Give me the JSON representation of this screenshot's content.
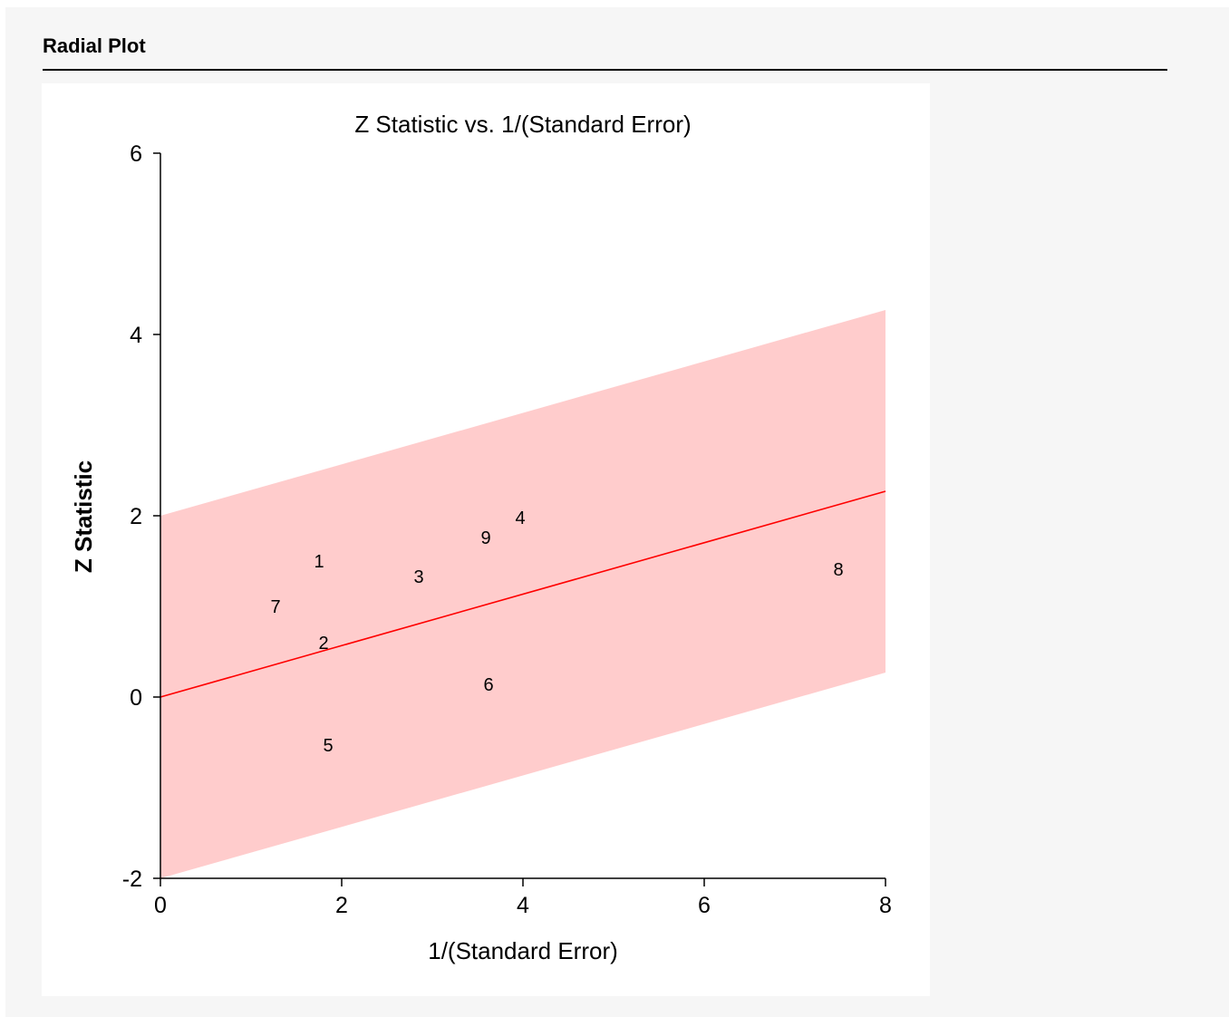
{
  "section": {
    "title": "Radial Plot"
  },
  "chart_data": {
    "type": "scatter",
    "title": "Z Statistic vs. 1/(Standard Error)",
    "xlabel": "1/(Standard Error)",
    "ylabel": "Z Statistic",
    "xlim": [
      0,
      8
    ],
    "ylim": [
      -2,
      6
    ],
    "xticks": [
      0,
      2,
      4,
      6,
      8
    ],
    "yticks": [
      -2,
      0,
      2,
      4,
      6
    ],
    "grid": false,
    "points": [
      {
        "label": "1",
        "x": 1.75,
        "y": 1.5
      },
      {
        "label": "2",
        "x": 1.8,
        "y": 0.6
      },
      {
        "label": "3",
        "x": 2.85,
        "y": 1.33
      },
      {
        "label": "4",
        "x": 3.97,
        "y": 1.98
      },
      {
        "label": "5",
        "x": 1.85,
        "y": -0.53
      },
      {
        "label": "6",
        "x": 3.62,
        "y": 0.14
      },
      {
        "label": "7",
        "x": 1.27,
        "y": 1.0
      },
      {
        "label": "8",
        "x": 7.48,
        "y": 1.41
      },
      {
        "label": "9",
        "x": 3.59,
        "y": 1.76
      }
    ],
    "regression_line": {
      "x": [
        0,
        8
      ],
      "y": [
        0,
        2.27
      ]
    },
    "confidence_band": {
      "x": [
        0,
        8
      ],
      "lower": [
        -2,
        0.27
      ],
      "upper": [
        2,
        4.27
      ]
    },
    "colors": {
      "band": "#ffcccc",
      "line": "#ff0000",
      "axis": "#000000"
    }
  }
}
